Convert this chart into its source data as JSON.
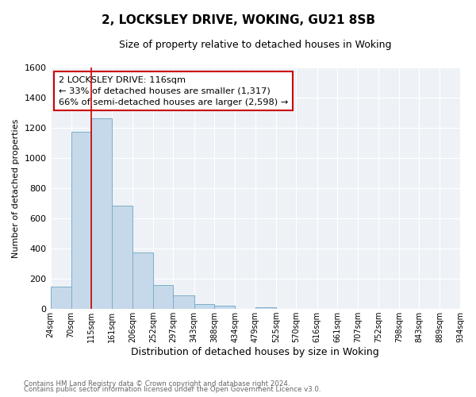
{
  "title": "2, LOCKSLEY DRIVE, WOKING, GU21 8SB",
  "subtitle": "Size of property relative to detached houses in Woking",
  "xlabel": "Distribution of detached houses by size in Woking",
  "ylabel": "Number of detached properties",
  "bin_edges": [
    24,
    70,
    115,
    161,
    206,
    252,
    297,
    343,
    388,
    434,
    479,
    525,
    570,
    616,
    661,
    707,
    752,
    798,
    843,
    889,
    934
  ],
  "bin_labels": [
    "24sqm",
    "70sqm",
    "115sqm",
    "161sqm",
    "206sqm",
    "252sqm",
    "297sqm",
    "343sqm",
    "388sqm",
    "434sqm",
    "479sqm",
    "525sqm",
    "570sqm",
    "616sqm",
    "661sqm",
    "707sqm",
    "752sqm",
    "798sqm",
    "843sqm",
    "889sqm",
    "934sqm"
  ],
  "counts": [
    150,
    1175,
    1265,
    685,
    375,
    160,
    90,
    35,
    22,
    0,
    10,
    0,
    0,
    0,
    0,
    0,
    0,
    0,
    0,
    0
  ],
  "bar_color": "#c6d9ea",
  "bar_edge_color": "#7aaec8",
  "vline_x": 115,
  "vline_color": "#cc0000",
  "ylim": [
    0,
    1600
  ],
  "yticks": [
    0,
    200,
    400,
    600,
    800,
    1000,
    1200,
    1400,
    1600
  ],
  "annotation_title": "2 LOCKSLEY DRIVE: 116sqm",
  "annotation_line1": "← 33% of detached houses are smaller (1,317)",
  "annotation_line2": "66% of semi-detached houses are larger (2,598) →",
  "annotation_box_color": "#ffffff",
  "annotation_box_edge": "#cc0000",
  "footer1": "Contains HM Land Registry data © Crown copyright and database right 2024.",
  "footer2": "Contains public sector information licensed under the Open Government Licence v3.0.",
  "bg_color": "#ffffff",
  "plot_bg_color": "#eef2f7",
  "grid_color": "#ffffff"
}
